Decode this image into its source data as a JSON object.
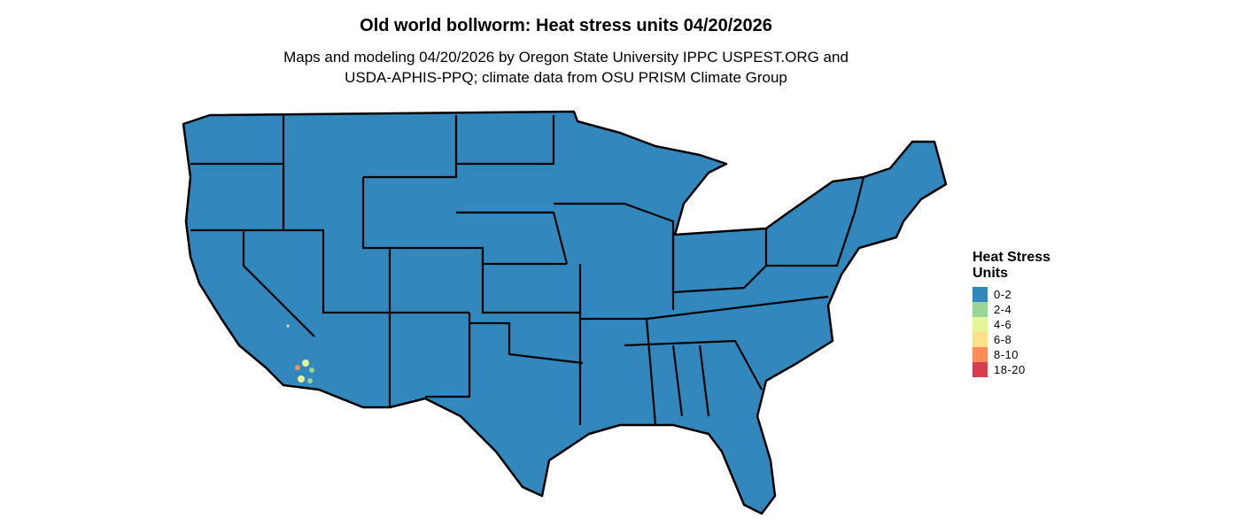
{
  "title": "Old world bollworm: Heat stress units 04/20/2026",
  "subtitle_line1": "Maps and modeling 04/20/2026 by Oregon State University IPPC USPEST.ORG and",
  "subtitle_line2": "USDA-APHIS-PPQ; climate data from OSU PRISM Climate Group",
  "legend": {
    "title": "Heat Stress Units",
    "items": [
      {
        "label": "0-2",
        "color": "#3288bd"
      },
      {
        "label": "2-4",
        "color": "#99d594"
      },
      {
        "label": "4-6",
        "color": "#e6f598"
      },
      {
        "label": "6-8",
        "color": "#fee08b"
      },
      {
        "label": "8-10",
        "color": "#fc8d59"
      },
      {
        "label": "18-20",
        "color": "#d53e4f"
      }
    ]
  },
  "map": {
    "region": "Contiguous United States",
    "dominant_class": "0-2",
    "highlight_region": "Southern California deserts",
    "outline_color": "#000000"
  }
}
